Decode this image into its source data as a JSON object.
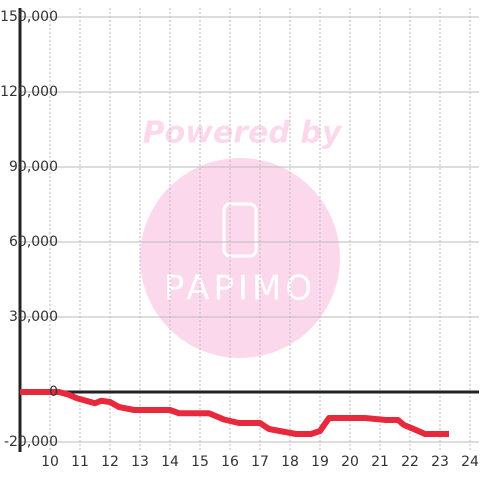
{
  "chart_data": {
    "type": "line",
    "x": [
      9.0,
      10.3,
      10.6,
      10.9,
      11.5,
      11.7,
      12.0,
      12.3,
      12.8,
      13.2,
      14.0,
      14.3,
      15.3,
      15.8,
      16.3,
      17.0,
      17.3,
      18.2,
      18.7,
      19.0,
      19.3,
      20.5,
      21.2,
      21.6,
      21.8,
      22.2,
      22.5,
      23.3
    ],
    "series": [
      {
        "color": "#e8283c",
        "values": [
          0,
          0,
          -1000,
          -2500,
          -4500,
          -3500,
          -4000,
          -6000,
          -7200,
          -7200,
          -7200,
          -8500,
          -8500,
          -11000,
          -12400,
          -12400,
          -14800,
          -16800,
          -16800,
          -15600,
          -10400,
          -10400,
          -11200,
          -11200,
          -13200,
          -15200,
          -16800,
          -16800
        ]
      }
    ],
    "xlim": [
      9,
      24.3
    ],
    "xticks": [
      10,
      11,
      12,
      13,
      14,
      15,
      16,
      17,
      18,
      19,
      20,
      21,
      22,
      23,
      24
    ],
    "ylim": [
      -24000,
      150000
    ],
    "yticks": [
      {
        "value": -20000,
        "label": "-20,000"
      },
      0,
      {
        "value": 30000,
        "label": "30,000"
      },
      {
        "value": 60000,
        "label": "60,000"
      },
      {
        "value": 90000,
        "label": "90,000"
      },
      {
        "value": 120000,
        "label": "120,000"
      },
      {
        "value": 150000,
        "label": "150,000"
      }
    ],
    "grid": true
  },
  "watermark": {
    "line1": "Powered by",
    "line2": "PAPIMO"
  }
}
